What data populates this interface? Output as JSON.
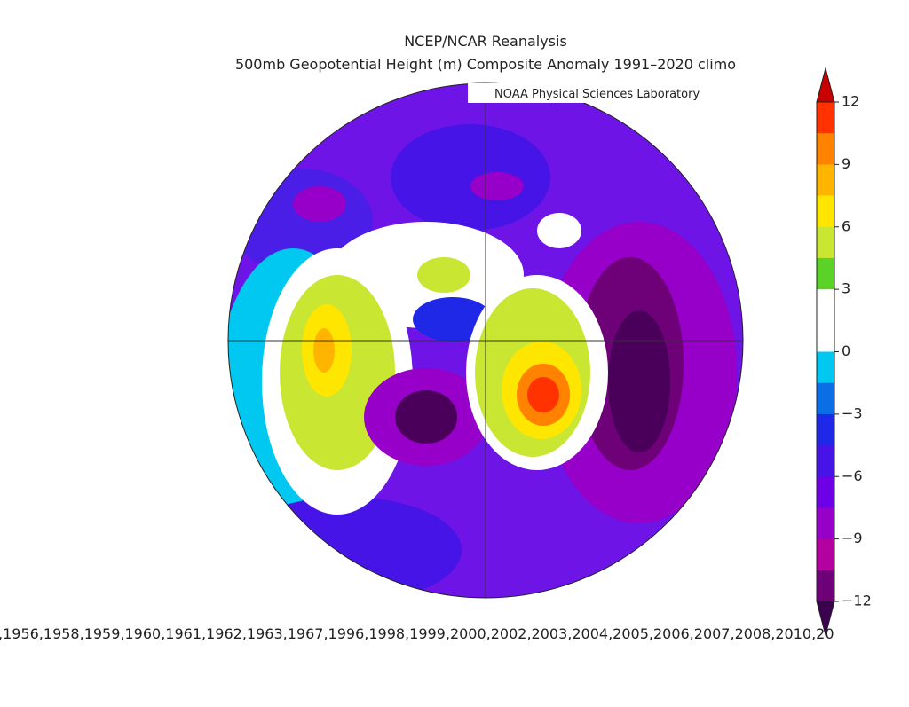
{
  "header": {
    "title": "NCEP/NCAR Reanalysis",
    "subtitle": "500mb Geopotential Height (m) Composite Anomaly 1991–2020 climo",
    "credit": "NOAA Physical Sciences Laboratory"
  },
  "colorbar": {
    "lim": [
      -12,
      12
    ],
    "ticks": [
      {
        "value": 12,
        "label": "12"
      },
      {
        "value": 9,
        "label": "9"
      },
      {
        "value": 6,
        "label": "6"
      },
      {
        "value": 3,
        "label": "3"
      },
      {
        "value": 0,
        "label": "0"
      },
      {
        "value": -3,
        "label": "−3"
      },
      {
        "value": -6,
        "label": "−6"
      },
      {
        "value": -9,
        "label": "−9"
      },
      {
        "value": -12,
        "label": "−12"
      }
    ],
    "colors": [
      "#ff3200",
      "#ff8200",
      "#ffb400",
      "#ffe600",
      "#c8e632",
      "#5ad228",
      "#ffffff",
      "#ffffff",
      "#00c8f0",
      "#0a6ee6",
      "#1e28e6",
      "#4614e6",
      "#6e00e6",
      "#9600c8",
      "#b400a0",
      "#6e0078"
    ],
    "over_color": "#c80000",
    "under_color": "#3c0050"
  },
  "footer": {
    "years": ",1956,1958,1959,1960,1961,1962,1963,1967,1996,1998,1999,2000,2002,2003,2004,2005,2006,2007,2008,2010,20"
  }
}
